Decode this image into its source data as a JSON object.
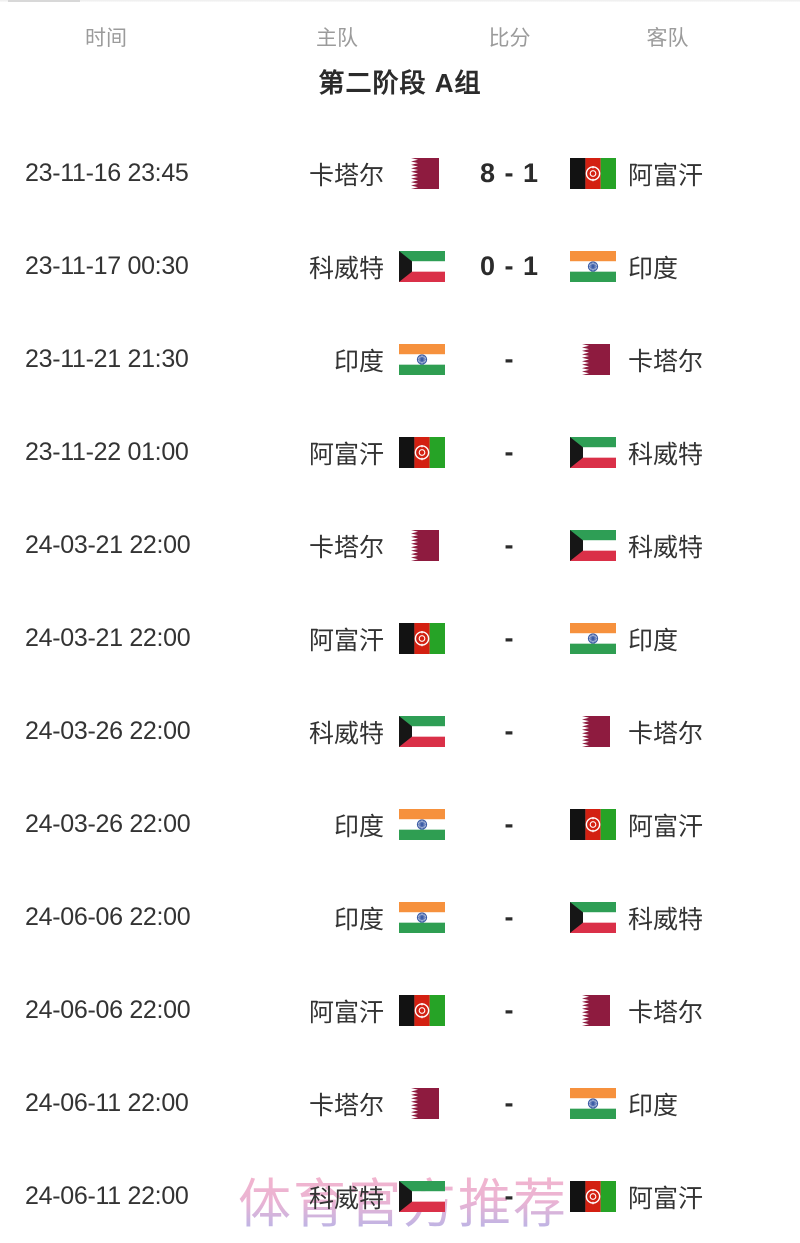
{
  "table_header": {
    "time": "时间",
    "home": "主队",
    "score": "比分",
    "away": "客队"
  },
  "group_title": "第二阶段 A组",
  "watermark": "体育官方推荐",
  "flag_colors": {
    "qatar": {
      "maroon": "#8E1B3F",
      "white": "#ffffff"
    },
    "afghanistan": {
      "black": "#121212",
      "red": "#D32011",
      "green": "#26A326",
      "emblem": "#ffffff"
    },
    "kuwait": {
      "green": "#2E9E55",
      "white": "#ffffff",
      "red": "#DA3048",
      "black": "#161616"
    },
    "india": {
      "saffron": "#F6913D",
      "white": "#ffffff",
      "green": "#2F9E52",
      "chakra": "#3B5BA5"
    }
  },
  "matches": [
    {
      "time": "23-11-16 23:45",
      "home": "卡塔尔",
      "home_flag": "qatar",
      "score": "8 - 1",
      "away": "阿富汗",
      "away_flag": "afghanistan"
    },
    {
      "time": "23-11-17 00:30",
      "home": "科威特",
      "home_flag": "kuwait",
      "score": "0 - 1",
      "away": "印度",
      "away_flag": "india"
    },
    {
      "time": "23-11-21 21:30",
      "home": "印度",
      "home_flag": "india",
      "score": "-",
      "away": "卡塔尔",
      "away_flag": "qatar"
    },
    {
      "time": "23-11-22 01:00",
      "home": "阿富汗",
      "home_flag": "afghanistan",
      "score": "-",
      "away": "科威特",
      "away_flag": "kuwait"
    },
    {
      "time": "24-03-21 22:00",
      "home": "卡塔尔",
      "home_flag": "qatar",
      "score": "-",
      "away": "科威特",
      "away_flag": "kuwait"
    },
    {
      "time": "24-03-21 22:00",
      "home": "阿富汗",
      "home_flag": "afghanistan",
      "score": "-",
      "away": "印度",
      "away_flag": "india"
    },
    {
      "time": "24-03-26 22:00",
      "home": "科威特",
      "home_flag": "kuwait",
      "score": "-",
      "away": "卡塔尔",
      "away_flag": "qatar"
    },
    {
      "time": "24-03-26 22:00",
      "home": "印度",
      "home_flag": "india",
      "score": "-",
      "away": "阿富汗",
      "away_flag": "afghanistan"
    },
    {
      "time": "24-06-06 22:00",
      "home": "印度",
      "home_flag": "india",
      "score": "-",
      "away": "科威特",
      "away_flag": "kuwait"
    },
    {
      "time": "24-06-06 22:00",
      "home": "阿富汗",
      "home_flag": "afghanistan",
      "score": "-",
      "away": "卡塔尔",
      "away_flag": "qatar"
    },
    {
      "time": "24-06-11 22:00",
      "home": "卡塔尔",
      "home_flag": "qatar",
      "score": "-",
      "away": "印度",
      "away_flag": "india"
    },
    {
      "time": "24-06-11 22:00",
      "home": "科威特",
      "home_flag": "kuwait",
      "score": "-",
      "away": "阿富汗",
      "away_flag": "afghanistan"
    }
  ]
}
